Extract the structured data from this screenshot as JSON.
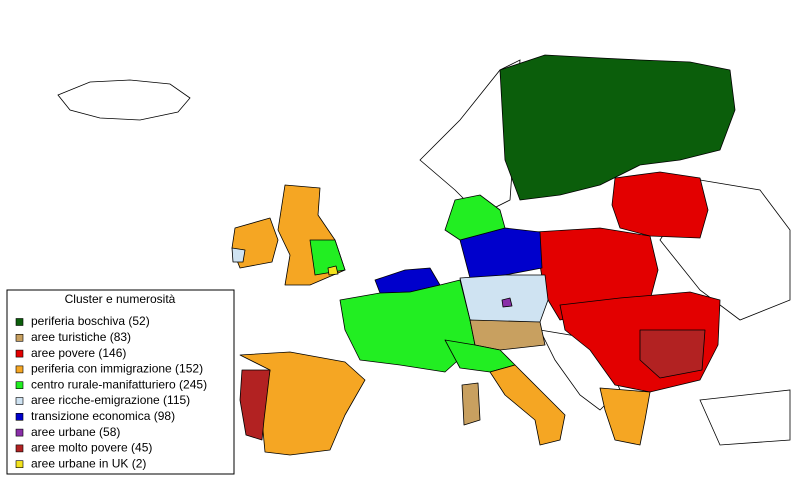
{
  "legend": {
    "title": "Cluster e numerosità",
    "items": [
      {
        "label": "periferia boschiva (52)",
        "color": "#0b5e0b"
      },
      {
        "label": "aree turistiche (83)",
        "color": "#c8a060"
      },
      {
        "label": "aree povere (146)",
        "color": "#e30000"
      },
      {
        "label": "periferia con immigrazione (152)",
        "color": "#f5a623"
      },
      {
        "label": "centro rurale-manifatturiero (245)",
        "color": "#22ee22"
      },
      {
        "label": "aree ricche-emigrazione (115)",
        "color": "#cfe3f2"
      },
      {
        "label": "transizione economica (98)",
        "color": "#0000cc"
      },
      {
        "label": "aree urbane (58)",
        "color": "#8a2fa8"
      },
      {
        "label": "aree molto povere (45)",
        "color": "#b22222"
      },
      {
        "label": "aree urbane in UK (2)",
        "color": "#f2e21e"
      }
    ]
  }
}
